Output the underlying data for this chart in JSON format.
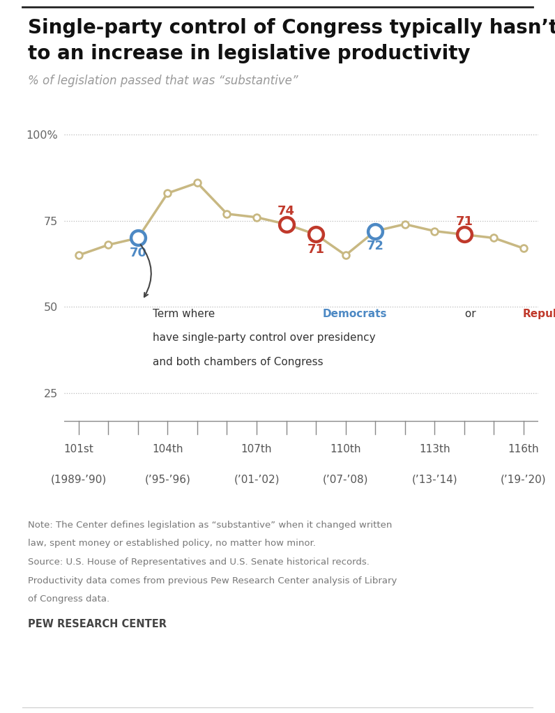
{
  "title_line1": "Single-party control of Congress typically hasn’t led",
  "title_line2": "to an increase in legislative productivity",
  "subtitle": "% of legislation passed that was “substantive”",
  "congresses": [
    101,
    102,
    103,
    104,
    105,
    106,
    107,
    108,
    109,
    110,
    111,
    112,
    113,
    114,
    115,
    116
  ],
  "values": [
    65,
    68,
    70,
    83,
    86,
    77,
    76,
    74,
    71,
    65,
    72,
    74,
    72,
    71,
    70,
    67
  ],
  "line_color": "#c8b882",
  "democrat_points": [
    103,
    111
  ],
  "republican_points": [
    108,
    109,
    114
  ],
  "democrat_color": "#4d89c4",
  "republican_color": "#c0392b",
  "democrat_labels": {
    "103": "70",
    "111": "72"
  },
  "republican_labels": {
    "108": "74",
    "109": "71",
    "114": "71"
  },
  "dem_label_below": [
    103,
    111
  ],
  "rep_label_above": [
    108,
    114
  ],
  "rep_label_below": [
    109
  ],
  "yticks": [
    25,
    50,
    75,
    100
  ],
  "ytick_labels": [
    "25",
    "50",
    "75",
    "100%"
  ],
  "xtick_positions": [
    101,
    104,
    107,
    110,
    113,
    116
  ],
  "xtick_labels_line1": [
    "101st",
    "104th",
    "107th",
    "110th",
    "113th",
    "116th"
  ],
  "xtick_labels_line2": [
    "(1989-’90)",
    "(’95-’96)",
    "(’01-’02)",
    "(’07-’08)",
    "(’13-’14)",
    "(’19-’20)"
  ],
  "note_lines": [
    "Note: The Center defines legislation as “substantive” when it changed written",
    "law, spent money or established policy, no matter how minor.",
    "Source: U.S. House of Representatives and U.S. Senate historical records.",
    "Productivity data comes from previous Pew Research Center analysis of Library",
    "of Congress data."
  ],
  "source_label": "PEW RESEARCH CENTER",
  "bg_color": "#ffffff",
  "grid_color": "#bbbbbb",
  "tick_color": "#888888",
  "text_color_dark": "#111111",
  "text_color_mid": "#333333",
  "text_color_light": "#777777",
  "yaxis_color": "#666666"
}
